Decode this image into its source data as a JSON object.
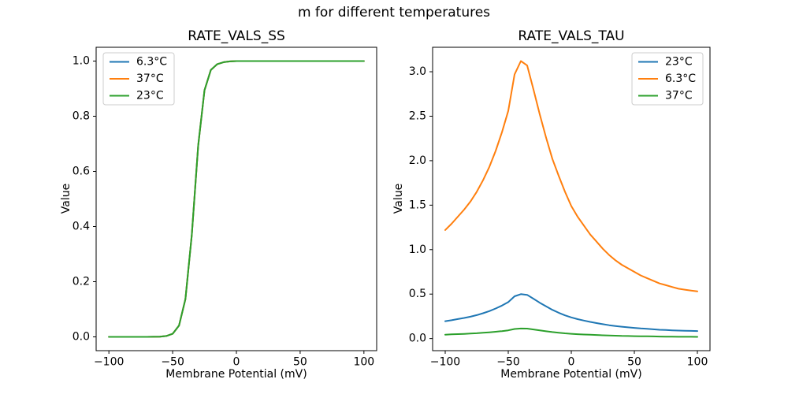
{
  "figure": {
    "title": "m for different temperatures",
    "background": "#ffffff",
    "text_color": "#000000"
  },
  "colors": {
    "blue": "#1f77b4",
    "orange": "#ff7f0e",
    "green": "#2ca02c",
    "spine": "#000000",
    "legend_border": "#cccccc",
    "legend_fill": "#ffffff"
  },
  "chart_data": [
    {
      "type": "line",
      "title": "RATE_VALS_SS",
      "xlabel": "Membrane Potential (mV)",
      "ylabel": "Value",
      "grid": false,
      "xlim": [
        -110,
        110
      ],
      "ylim": [
        -0.05,
        1.05
      ],
      "xticks": [
        -100,
        -50,
        0,
        50,
        100
      ],
      "xtick_labels": [
        "−100",
        "−50",
        "0",
        "50",
        "100"
      ],
      "yticks": [
        0.0,
        0.2,
        0.4,
        0.6,
        0.8,
        1.0
      ],
      "ytick_labels": [
        "0.0",
        "0.2",
        "0.4",
        "0.6",
        "0.8",
        "1.0"
      ],
      "legend_loc": "upper left",
      "x": [
        -100,
        -95,
        -90,
        -85,
        -80,
        -75,
        -70,
        -65,
        -60,
        -55,
        -50,
        -45,
        -40,
        -35,
        -30,
        -25,
        -20,
        -15,
        -10,
        -5,
        0,
        5,
        10,
        15,
        20,
        25,
        30,
        35,
        40,
        45,
        50,
        55,
        60,
        65,
        70,
        75,
        80,
        85,
        90,
        95,
        100
      ],
      "series": [
        {
          "name": "6.3°C",
          "color": "#1f77b4",
          "values": [
            0,
            0,
            0,
            0,
            0,
            0,
            0.0001,
            0.0002,
            0.0008,
            0.003,
            0.011,
            0.041,
            0.137,
            0.37,
            0.693,
            0.894,
            0.968,
            0.989,
            0.996,
            0.999,
            1,
            1,
            1,
            1,
            1,
            1,
            1,
            1,
            1,
            1,
            1,
            1,
            1,
            1,
            1,
            1,
            1,
            1,
            1,
            1,
            1
          ]
        },
        {
          "name": "37°C",
          "color": "#ff7f0e",
          "values": [
            0,
            0,
            0,
            0,
            0,
            0,
            0.0001,
            0.0002,
            0.0008,
            0.003,
            0.011,
            0.041,
            0.137,
            0.37,
            0.693,
            0.894,
            0.968,
            0.989,
            0.996,
            0.999,
            1,
            1,
            1,
            1,
            1,
            1,
            1,
            1,
            1,
            1,
            1,
            1,
            1,
            1,
            1,
            1,
            1,
            1,
            1,
            1,
            1
          ]
        },
        {
          "name": "23°C",
          "color": "#2ca02c",
          "values": [
            0,
            0,
            0,
            0,
            0,
            0,
            0.0001,
            0.0002,
            0.0008,
            0.003,
            0.011,
            0.041,
            0.137,
            0.37,
            0.693,
            0.894,
            0.968,
            0.989,
            0.996,
            0.999,
            1,
            1,
            1,
            1,
            1,
            1,
            1,
            1,
            1,
            1,
            1,
            1,
            1,
            1,
            1,
            1,
            1,
            1,
            1,
            1,
            1
          ]
        }
      ]
    },
    {
      "type": "line",
      "title": "RATE_VALS_TAU",
      "xlabel": "Membrane Potential (mV)",
      "ylabel": "Value",
      "grid": false,
      "xlim": [
        -110,
        110
      ],
      "ylim": [
        -0.136,
        3.275
      ],
      "xticks": [
        -100,
        -50,
        0,
        50,
        100
      ],
      "xtick_labels": [
        "−100",
        "−50",
        "0",
        "50",
        "100"
      ],
      "yticks": [
        0.0,
        0.5,
        1.0,
        1.5,
        2.0,
        2.5,
        3.0
      ],
      "ytick_labels": [
        "0.0",
        "0.5",
        "1.0",
        "1.5",
        "2.0",
        "2.5",
        "3.0"
      ],
      "legend_loc": "upper right",
      "x": [
        -100,
        -95,
        -90,
        -85,
        -80,
        -75,
        -70,
        -65,
        -60,
        -55,
        -50,
        -45,
        -40,
        -35,
        -30,
        -25,
        -20,
        -15,
        -10,
        -5,
        0,
        5,
        10,
        15,
        20,
        25,
        30,
        35,
        40,
        45,
        50,
        55,
        60,
        65,
        70,
        75,
        80,
        85,
        90,
        95,
        100
      ],
      "series": [
        {
          "name": "23°C",
          "color": "#1f77b4",
          "values": [
            0.195,
            0.206,
            0.219,
            0.232,
            0.246,
            0.264,
            0.285,
            0.309,
            0.338,
            0.371,
            0.41,
            0.475,
            0.499,
            0.491,
            0.448,
            0.403,
            0.362,
            0.323,
            0.29,
            0.261,
            0.238,
            0.218,
            0.202,
            0.187,
            0.174,
            0.162,
            0.15,
            0.141,
            0.133,
            0.126,
            0.12,
            0.114,
            0.109,
            0.104,
            0.099,
            0.096,
            0.093,
            0.09,
            0.088,
            0.086,
            0.085
          ]
        },
        {
          "name": "6.3°C",
          "color": "#ff7f0e",
          "values": [
            1.22,
            1.29,
            1.37,
            1.45,
            1.54,
            1.65,
            1.78,
            1.93,
            2.11,
            2.32,
            2.56,
            2.97,
            3.12,
            3.07,
            2.8,
            2.52,
            2.26,
            2.02,
            1.83,
            1.65,
            1.49,
            1.37,
            1.27,
            1.17,
            1.09,
            1.01,
            0.94,
            0.88,
            0.83,
            0.79,
            0.75,
            0.71,
            0.68,
            0.65,
            0.62,
            0.6,
            0.58,
            0.56,
            0.55,
            0.54,
            0.53
          ]
        },
        {
          "name": "37°C",
          "color": "#2ca02c",
          "values": [
            0.044,
            0.047,
            0.05,
            0.053,
            0.056,
            0.06,
            0.065,
            0.07,
            0.077,
            0.084,
            0.093,
            0.108,
            0.113,
            0.112,
            0.102,
            0.092,
            0.082,
            0.073,
            0.066,
            0.059,
            0.054,
            0.049,
            0.046,
            0.043,
            0.04,
            0.037,
            0.034,
            0.032,
            0.03,
            0.029,
            0.027,
            0.026,
            0.025,
            0.024,
            0.023,
            0.022,
            0.021,
            0.02,
            0.02,
            0.02,
            0.019
          ]
        }
      ]
    }
  ]
}
